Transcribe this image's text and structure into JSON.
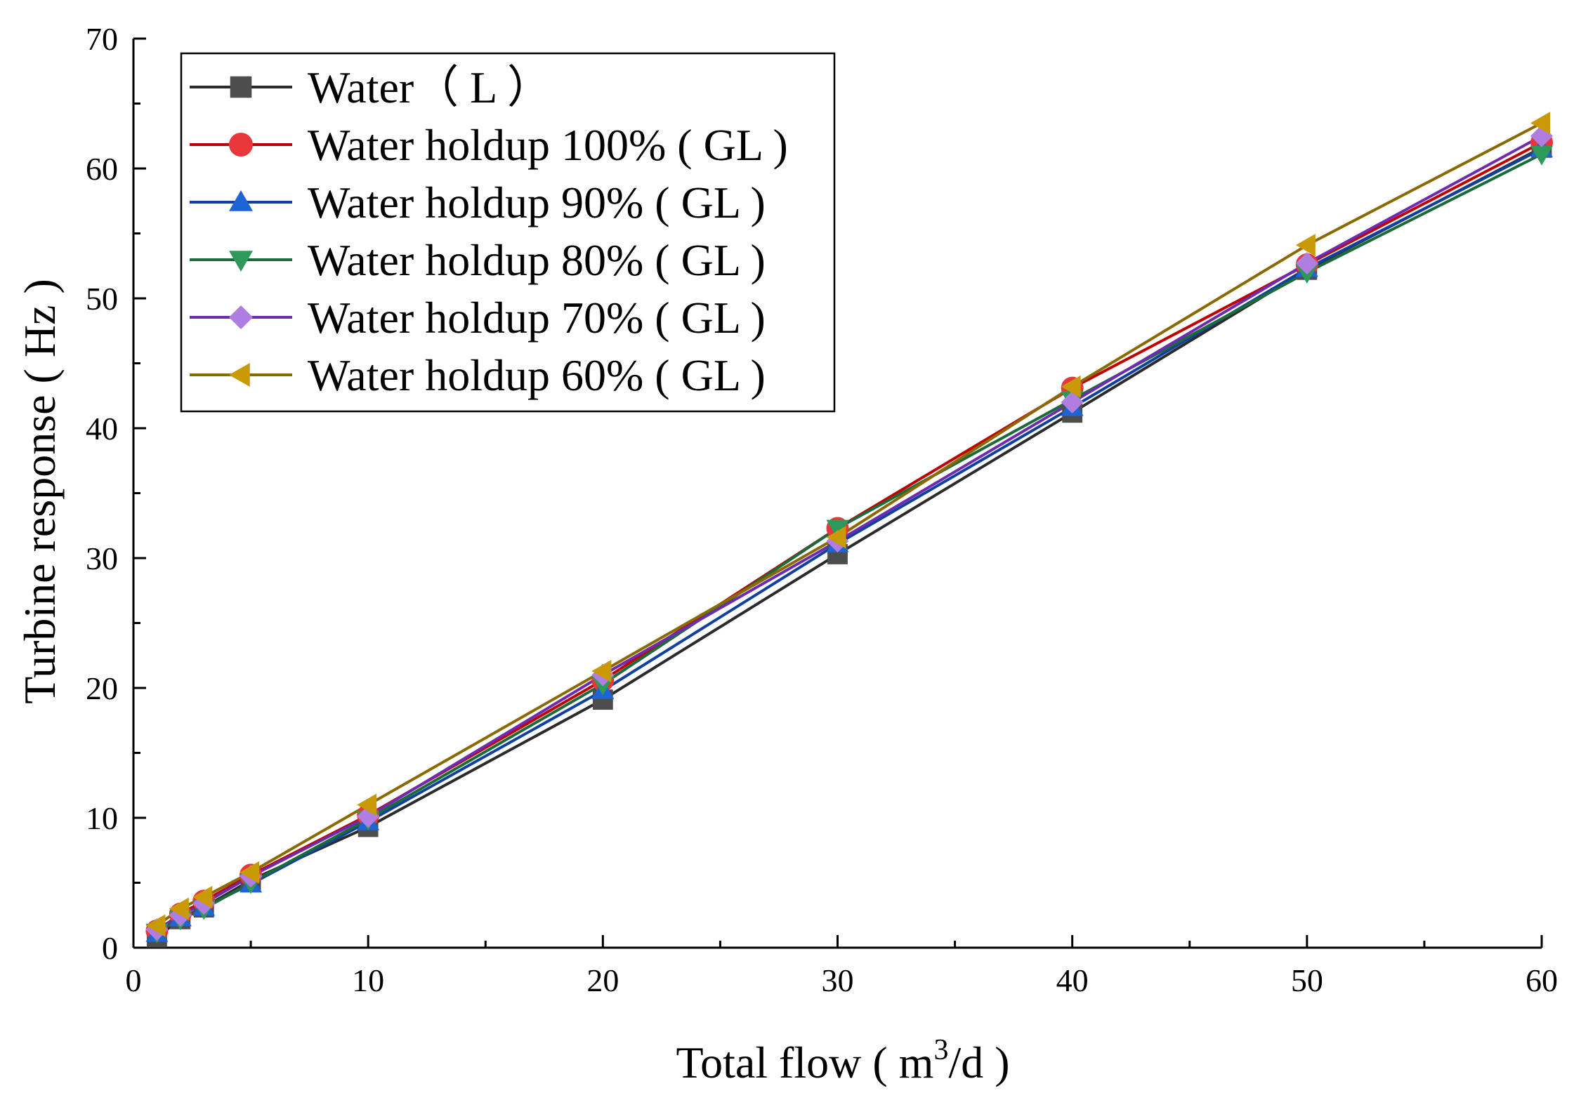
{
  "chart_data": {
    "type": "line",
    "xlabel_main": "Total flow ( m",
    "xlabel_sup": "3",
    "xlabel_end": "/d )",
    "ylabel": "Turbine response ( Hz )",
    "xlim": [
      0,
      60
    ],
    "ylim": [
      0,
      70
    ],
    "x_ticks": [
      0,
      10,
      20,
      30,
      40,
      50,
      60
    ],
    "y_ticks": [
      0,
      10,
      20,
      30,
      40,
      50,
      60,
      70
    ],
    "x_tick_labels": [
      "0",
      "10",
      "20",
      "30",
      "40",
      "50",
      "60"
    ],
    "y_tick_labels": [
      "0",
      "10",
      "20",
      "30",
      "40",
      "50",
      "60",
      "70"
    ],
    "legend_position": "top-left",
    "x": [
      1,
      2,
      3,
      5,
      10,
      20,
      30,
      40,
      50,
      60
    ],
    "series": [
      {
        "name": "Water（ L ）",
        "color": "#4d4d4d",
        "marker": "square",
        "values": [
          0.8,
          2.2,
          3.1,
          5.2,
          9.3,
          19.1,
          30.3,
          41.2,
          52.2,
          61.6
        ]
      },
      {
        "name": "Water holdup 100% ( GL )",
        "color": "#e8363b",
        "marker": "circle",
        "values": [
          1.3,
          2.6,
          3.6,
          5.6,
          10.2,
          20.6,
          32.3,
          43.1,
          52.6,
          62.0
        ]
      },
      {
        "name": "Water holdup 90% ( GL )",
        "color": "#1f64d6",
        "marker": "triangle-up",
        "values": [
          1.1,
          2.3,
          3.1,
          4.9,
          9.7,
          19.8,
          31.1,
          41.6,
          52.3,
          61.5
        ]
      },
      {
        "name": "Water holdup 80% ( GL )",
        "color": "#2e9a5a",
        "marker": "triangle-down",
        "values": [
          1.2,
          2.2,
          3.0,
          5.0,
          9.9,
          20.3,
          32.3,
          42.2,
          52.0,
          61.1
        ]
      },
      {
        "name": "Water holdup 70% ( GL )",
        "color": "#b07ee0",
        "marker": "diamond",
        "values": [
          1.4,
          2.5,
          3.4,
          5.5,
          10.1,
          21.0,
          31.3,
          42.0,
          52.7,
          62.5
        ]
      },
      {
        "name": "Water holdup 60% ( GL )",
        "color": "#c99a06",
        "marker": "triangle-left",
        "values": [
          1.7,
          3.0,
          3.9,
          5.8,
          11.0,
          21.3,
          31.6,
          43.2,
          54.1,
          63.5
        ]
      }
    ]
  },
  "line_colors": {
    "Water（ L ）": "#2b2b2b",
    "Water holdup 100% ( GL )": "#c00000",
    "Water holdup 90% ( GL )": "#1040a0",
    "Water holdup 80% ( GL )": "#1b6b3a",
    "Water holdup 70% ( GL )": "#6f2bb0",
    "Water holdup 60% ( GL )": "#8a6a00"
  }
}
